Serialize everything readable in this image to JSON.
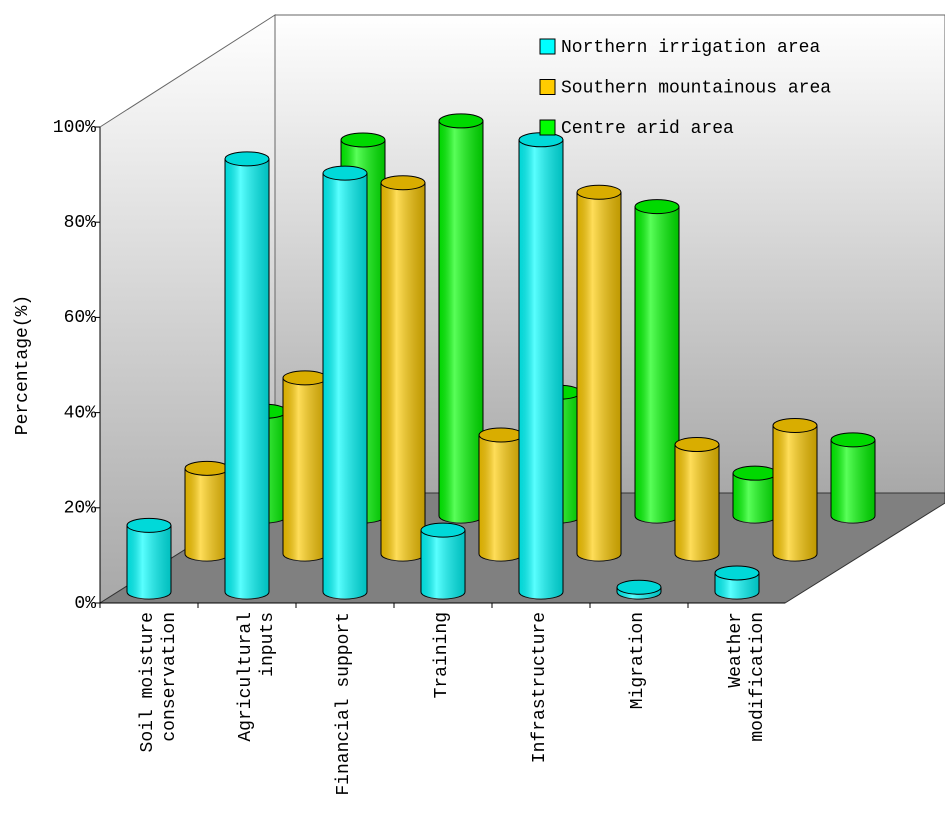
{
  "chart_data": {
    "type": "bar3d",
    "y_label": "Percentage(%)",
    "categories": [
      "Soil moisture\nconservation",
      "Agricultural\ninputs",
      "Financial support",
      "Training",
      "Infrastructure",
      "Migration",
      "Weather\nmodification"
    ],
    "series": [
      {
        "name": "Northern irrigation area",
        "color": "#00ffff",
        "values": [
          14,
          91,
          88,
          13,
          95,
          1,
          4
        ]
      },
      {
        "name": "Southern mountainous area",
        "color": "#ffcc00",
        "values": [
          18,
          37,
          78,
          25,
          76,
          23,
          27
        ]
      },
      {
        "name": "Centre arid area",
        "color": "#00ff00",
        "values": [
          22,
          79,
          83,
          26,
          65,
          9,
          16
        ]
      }
    ],
    "ylim": [
      0,
      100
    ],
    "yticks": [
      {
        "value": 0,
        "label": "0%"
      },
      {
        "value": 20,
        "label": "20%"
      },
      {
        "value": 40,
        "label": "40%"
      },
      {
        "value": 60,
        "label": "60%"
      },
      {
        "value": 80,
        "label": "80%"
      },
      {
        "value": 100,
        "label": "100%"
      }
    ]
  }
}
